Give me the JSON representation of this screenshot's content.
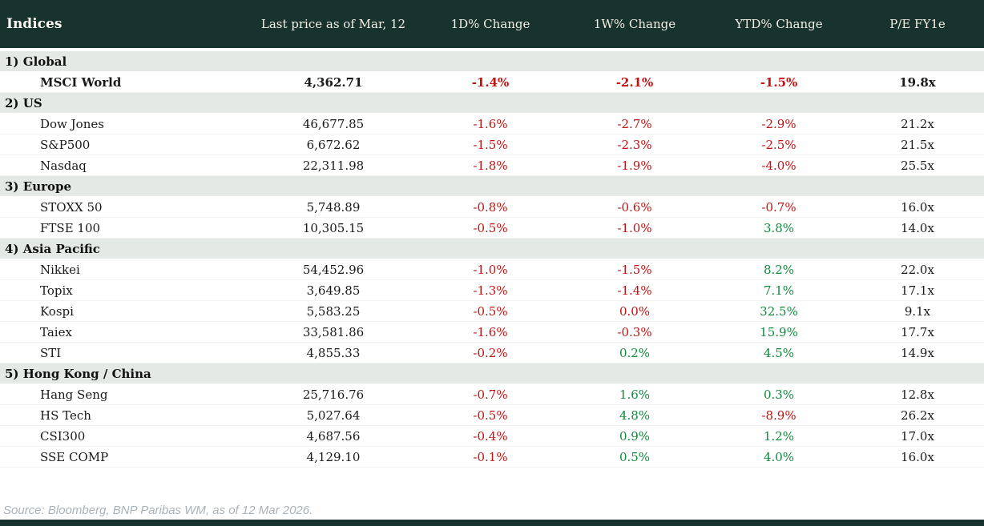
{
  "table": {
    "title": "Indices",
    "columns": [
      "Last price as of Mar, 12",
      "1D% Change",
      "1W% Change",
      "YTD% Change",
      "P/E FY1e"
    ],
    "sections": [
      {
        "label": "1) Global",
        "rows": [
          {
            "name": "MSCI World",
            "price": "4,362.71",
            "bold": true,
            "changes": [
              {
                "v": "-1.4%",
                "c": "neg"
              },
              {
                "v": "-2.1%",
                "c": "neg"
              },
              {
                "v": "-1.5%",
                "c": "neg"
              }
            ],
            "pe": "19.8x"
          }
        ]
      },
      {
        "label": "2) US",
        "rows": [
          {
            "name": "Dow Jones",
            "price": "46,677.85",
            "bold": false,
            "changes": [
              {
                "v": "-1.6%",
                "c": "neg"
              },
              {
                "v": "-2.7%",
                "c": "neg"
              },
              {
                "v": "-2.9%",
                "c": "neg"
              }
            ],
            "pe": "21.2x"
          },
          {
            "name": "S&P500",
            "price": "6,672.62",
            "bold": false,
            "changes": [
              {
                "v": "-1.5%",
                "c": "neg"
              },
              {
                "v": "-2.3%",
                "c": "neg"
              },
              {
                "v": "-2.5%",
                "c": "neg"
              }
            ],
            "pe": "21.5x"
          },
          {
            "name": "Nasdaq",
            "price": "22,311.98",
            "bold": false,
            "changes": [
              {
                "v": "-1.8%",
                "c": "neg"
              },
              {
                "v": "-1.9%",
                "c": "neg"
              },
              {
                "v": "-4.0%",
                "c": "neg"
              }
            ],
            "pe": "25.5x"
          }
        ]
      },
      {
        "label": "3) Europe",
        "rows": [
          {
            "name": "STOXX 50",
            "price": "5,748.89",
            "bold": false,
            "changes": [
              {
                "v": "-0.8%",
                "c": "neg"
              },
              {
                "v": "-0.6%",
                "c": "neg"
              },
              {
                "v": "-0.7%",
                "c": "neg"
              }
            ],
            "pe": "16.0x"
          },
          {
            "name": "FTSE 100",
            "price": "10,305.15",
            "bold": false,
            "changes": [
              {
                "v": "-0.5%",
                "c": "neg"
              },
              {
                "v": "-1.0%",
                "c": "neg"
              },
              {
                "v": "3.8%",
                "c": "pos"
              }
            ],
            "pe": "14.0x"
          }
        ]
      },
      {
        "label": "4) Asia Pacific",
        "rows": [
          {
            "name": "Nikkei",
            "price": "54,452.96",
            "bold": false,
            "changes": [
              {
                "v": "-1.0%",
                "c": "neg"
              },
              {
                "v": "-1.5%",
                "c": "neg"
              },
              {
                "v": "8.2%",
                "c": "pos"
              }
            ],
            "pe": "22.0x"
          },
          {
            "name": "Topix",
            "price": "3,649.85",
            "bold": false,
            "changes": [
              {
                "v": "-1.3%",
                "c": "neg"
              },
              {
                "v": "-1.4%",
                "c": "neg"
              },
              {
                "v": "7.1%",
                "c": "pos"
              }
            ],
            "pe": "17.1x"
          },
          {
            "name": "Kospi",
            "price": "5,583.25",
            "bold": false,
            "changes": [
              {
                "v": "-0.5%",
                "c": "neg"
              },
              {
                "v": "0.0%",
                "c": "neg"
              },
              {
                "v": "32.5%",
                "c": "pos"
              }
            ],
            "pe": "9.1x"
          },
          {
            "name": "Taiex",
            "price": "33,581.86",
            "bold": false,
            "changes": [
              {
                "v": "-1.6%",
                "c": "neg"
              },
              {
                "v": "-0.3%",
                "c": "neg"
              },
              {
                "v": "15.9%",
                "c": "pos"
              }
            ],
            "pe": "17.7x"
          },
          {
            "name": "STI",
            "price": "4,855.33",
            "bold": false,
            "changes": [
              {
                "v": "-0.2%",
                "c": "neg"
              },
              {
                "v": "0.2%",
                "c": "pos"
              },
              {
                "v": "4.5%",
                "c": "pos"
              }
            ],
            "pe": "14.9x"
          }
        ]
      },
      {
        "label": "5) Hong Kong / China",
        "rows": [
          {
            "name": "Hang Seng",
            "price": "25,716.76",
            "bold": false,
            "changes": [
              {
                "v": "-0.7%",
                "c": "neg"
              },
              {
                "v": "1.6%",
                "c": "pos"
              },
              {
                "v": "0.3%",
                "c": "pos"
              }
            ],
            "pe": "12.8x"
          },
          {
            "name": "HS Tech",
            "price": "5,027.64",
            "bold": false,
            "changes": [
              {
                "v": "-0.5%",
                "c": "neg"
              },
              {
                "v": "4.8%",
                "c": "pos"
              },
              {
                "v": "-8.9%",
                "c": "neg"
              }
            ],
            "pe": "26.2x"
          },
          {
            "name": "CSI300",
            "price": "4,687.56",
            "bold": false,
            "changes": [
              {
                "v": "-0.4%",
                "c": "neg"
              },
              {
                "v": "0.9%",
                "c": "pos"
              },
              {
                "v": "1.2%",
                "c": "pos"
              }
            ],
            "pe": "17.0x"
          },
          {
            "name": "SSE COMP",
            "price": "4,129.10",
            "bold": false,
            "changes": [
              {
                "v": "-0.1%",
                "c": "neg"
              },
              {
                "v": "0.5%",
                "c": "pos"
              },
              {
                "v": "4.0%",
                "c": "pos"
              }
            ],
            "pe": "16.0x"
          }
        ]
      }
    ]
  },
  "footer": {
    "source": "Source: Bloomberg, BNP Paribas WM, as of 12 Mar 2026."
  },
  "colors": {
    "header_bg": "#18332d",
    "section_bg": "#e4e9e5",
    "negative": "#c41111",
    "positive": "#0f8b3d",
    "header_text": "#f2efe5",
    "source_text": "#a9b2ba"
  },
  "chart_data": {
    "type": "table",
    "title": "Indices",
    "columns": [
      "Indices",
      "Last price as of Mar, 12",
      "1D% Change",
      "1W% Change",
      "YTD% Change",
      "P/E FY1e"
    ],
    "rows": [
      [
        "1) Global",
        "",
        "",
        "",
        "",
        ""
      ],
      [
        "MSCI World",
        "4,362.71",
        "-1.4%",
        "-2.1%",
        "-1.5%",
        "19.8x"
      ],
      [
        "2) US",
        "",
        "",
        "",
        "",
        ""
      ],
      [
        "Dow Jones",
        "46,677.85",
        "-1.6%",
        "-2.7%",
        "-2.9%",
        "21.2x"
      ],
      [
        "S&P500",
        "6,672.62",
        "-1.5%",
        "-2.3%",
        "-2.5%",
        "21.5x"
      ],
      [
        "Nasdaq",
        "22,311.98",
        "-1.8%",
        "-1.9%",
        "-4.0%",
        "25.5x"
      ],
      [
        "3) Europe",
        "",
        "",
        "",
        "",
        ""
      ],
      [
        "STOXX 50",
        "5,748.89",
        "-0.8%",
        "-0.6%",
        "-0.7%",
        "16.0x"
      ],
      [
        "FTSE 100",
        "10,305.15",
        "-0.5%",
        "-1.0%",
        "3.8%",
        "14.0x"
      ],
      [
        "4) Asia Pacific",
        "",
        "",
        "",
        "",
        ""
      ],
      [
        "Nikkei",
        "54,452.96",
        "-1.0%",
        "-1.5%",
        "8.2%",
        "22.0x"
      ],
      [
        "Topix",
        "3,649.85",
        "-1.3%",
        "-1.4%",
        "7.1%",
        "17.1x"
      ],
      [
        "Kospi",
        "5,583.25",
        "-0.5%",
        "0.0%",
        "32.5%",
        "9.1x"
      ],
      [
        "Taiex",
        "33,581.86",
        "-1.6%",
        "-0.3%",
        "15.9%",
        "17.7x"
      ],
      [
        "STI",
        "4,855.33",
        "-0.2%",
        "0.2%",
        "4.5%",
        "14.9x"
      ],
      [
        "5) Hong Kong / China",
        "",
        "",
        "",
        "",
        ""
      ],
      [
        "Hang Seng",
        "25,716.76",
        "-0.7%",
        "1.6%",
        "0.3%",
        "12.8x"
      ],
      [
        "HS Tech",
        "5,027.64",
        "-0.5%",
        "4.8%",
        "-8.9%",
        "26.2x"
      ],
      [
        "CSI300",
        "4,687.56",
        "-0.4%",
        "0.9%",
        "1.2%",
        "17.0x"
      ],
      [
        "SSE COMP",
        "4,129.10",
        "-0.1%",
        "0.5%",
        "4.0%",
        "16.0x"
      ]
    ]
  }
}
